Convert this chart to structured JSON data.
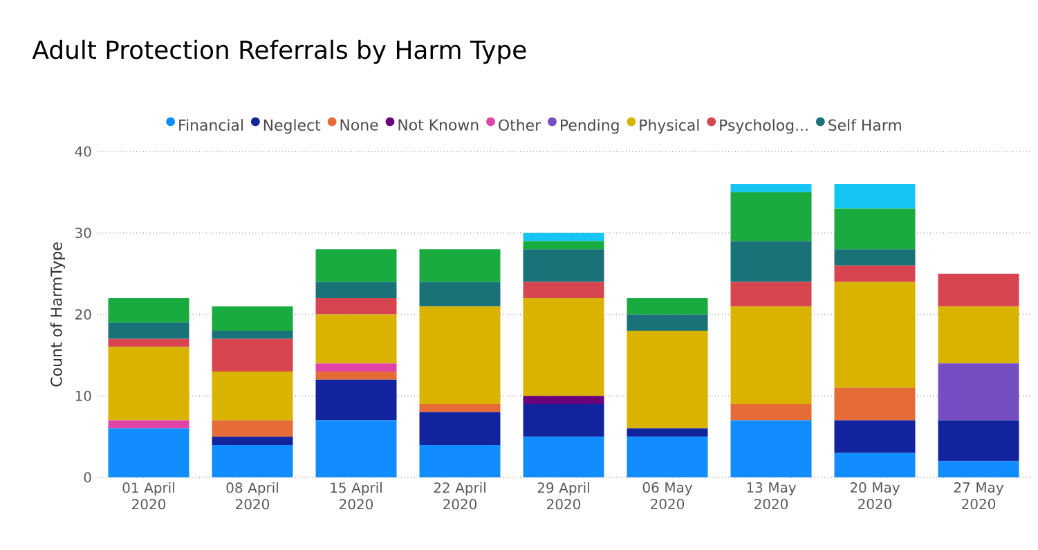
{
  "chart_data": {
    "type": "bar",
    "stacked": true,
    "title": "Adult Protection Referrals by Harm Type",
    "ylabel": "Count of HarmType",
    "categories": [
      "01 April 2020",
      "08 April 2020",
      "15 April 2020",
      "22 April 2020",
      "29 April 2020",
      "06 May 2020",
      "13 May 2020",
      "20 May 2020",
      "27 May 2020"
    ],
    "series": [
      {
        "name": "Financial",
        "color": "#118dff",
        "values": [
          6,
          4,
          7,
          4,
          5,
          5,
          7,
          3,
          2
        ]
      },
      {
        "name": "Neglect",
        "color": "#12239e",
        "values": [
          0,
          1,
          5,
          4,
          4,
          1,
          0,
          4,
          5
        ]
      },
      {
        "name": "None",
        "color": "#e66c37",
        "values": [
          0,
          2,
          1,
          1,
          0,
          0,
          2,
          4,
          0
        ]
      },
      {
        "name": "Not Known",
        "color": "#6b007b",
        "values": [
          0,
          0,
          0,
          0,
          1,
          0,
          0,
          0,
          0
        ]
      },
      {
        "name": "Other",
        "color": "#e044a7",
        "values": [
          1,
          0,
          1,
          0,
          0,
          0,
          0,
          0,
          0
        ]
      },
      {
        "name": "Pending",
        "color": "#744ec2",
        "values": [
          0,
          0,
          0,
          0,
          0,
          0,
          0,
          0,
          7
        ]
      },
      {
        "name": "Physical",
        "color": "#d9b300",
        "values": [
          9,
          6,
          6,
          12,
          12,
          12,
          12,
          13,
          7
        ]
      },
      {
        "name": "Psycholog...",
        "color": "#d64550",
        "values": [
          1,
          4,
          2,
          0,
          2,
          0,
          3,
          2,
          4
        ]
      },
      {
        "name": "Self Harm",
        "color": "#197278",
        "values": [
          2,
          1,
          2,
          3,
          4,
          2,
          5,
          2,
          0
        ]
      },
      {
        "color": "#1aab40",
        "values": [
          3,
          3,
          4,
          4,
          1,
          2,
          6,
          5,
          0
        ]
      },
      {
        "color": "#15c6f4",
        "values": [
          0,
          0,
          0,
          0,
          1,
          0,
          1,
          3,
          0
        ]
      }
    ],
    "ylim": [
      0,
      40
    ],
    "yticks": [
      0,
      10,
      20,
      30,
      40
    ],
    "grid": "y",
    "legend": "top"
  }
}
